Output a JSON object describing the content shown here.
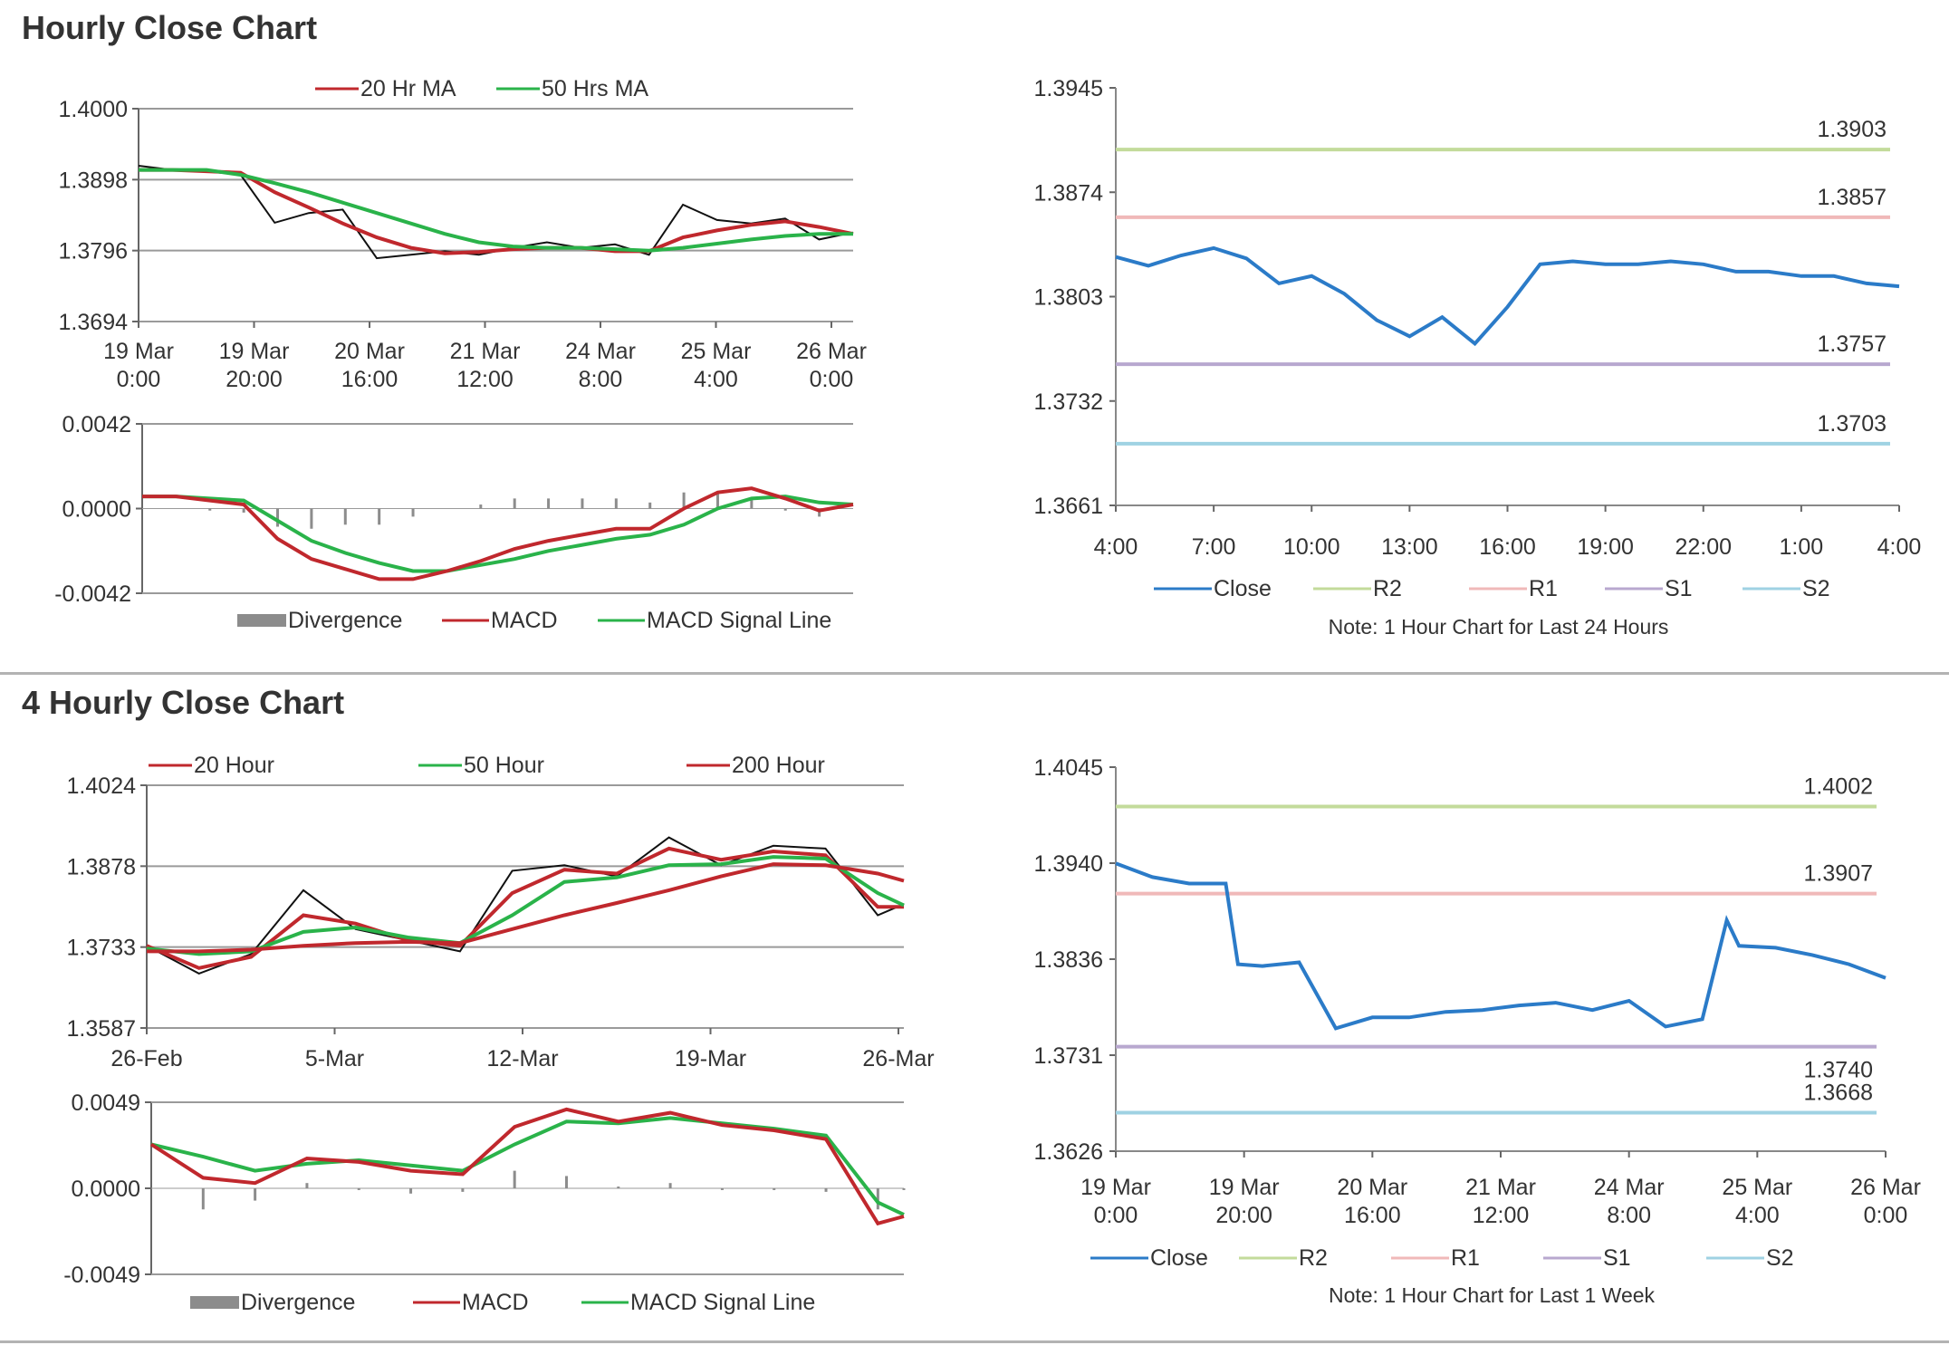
{
  "sections": {
    "hourly_title": "Hourly Close Chart",
    "four_hourly_title": "4 Hourly Close Chart"
  },
  "colors": {
    "ma_red": "#c0282d",
    "ma_green": "#2ab34a",
    "ma_blue": "#2b78c2",
    "close_blue": "#2b7bc8",
    "r2": "#c3db9b",
    "r1": "#f0b9b9",
    "s1": "#b8a8cf",
    "s2": "#9fd2e3",
    "divergence": "#8c8c8c"
  },
  "chart_data": [
    {
      "id": "hourly_price",
      "type": "line",
      "legend": [
        "20 Hr MA",
        "50 Hrs MA"
      ],
      "x_tick_labels": [
        [
          "19 Mar",
          "0:00"
        ],
        [
          "19 Mar",
          "20:00"
        ],
        [
          "20 Mar",
          "16:00"
        ],
        [
          "21 Mar",
          "12:00"
        ],
        [
          "24 Mar",
          "8:00"
        ],
        [
          "25 Mar",
          "4:00"
        ],
        [
          "26 Mar",
          "0:00"
        ]
      ],
      "y_tick_labels": [
        "1.4000",
        "1.3898",
        "1.3796",
        "1.3694"
      ],
      "ylim": [
        1.3694,
        1.4
      ],
      "x": [
        0,
        6,
        12,
        18,
        24,
        30,
        36,
        42,
        48,
        54,
        60,
        66,
        72,
        78,
        84,
        90,
        96,
        102,
        108,
        114,
        120,
        126
      ],
      "series": [
        {
          "name": "price",
          "values": [
            1.3918,
            1.3912,
            1.391,
            1.3905,
            1.3836,
            1.385,
            1.3855,
            1.3785,
            1.379,
            1.3795,
            1.379,
            1.38,
            1.3808,
            1.38,
            1.3805,
            1.379,
            1.3862,
            1.384,
            1.3835,
            1.3842,
            1.3812,
            1.3822
          ]
        },
        {
          "name": "20 Hr MA",
          "values": [
            1.3912,
            1.3912,
            1.391,
            1.3908,
            1.388,
            1.3858,
            1.3835,
            1.3815,
            1.38,
            1.3792,
            1.3794,
            1.3798,
            1.38,
            1.38,
            1.3795,
            1.3795,
            1.3815,
            1.3825,
            1.3833,
            1.3838,
            1.383,
            1.382
          ]
        },
        {
          "name": "50 Hrs MA",
          "values": [
            1.3912,
            1.3912,
            1.3912,
            1.3905,
            1.3893,
            1.388,
            1.3865,
            1.385,
            1.3835,
            1.382,
            1.3808,
            1.3802,
            1.38,
            1.38,
            1.3798,
            1.3796,
            1.38,
            1.3806,
            1.3812,
            1.3817,
            1.382,
            1.382
          ]
        }
      ]
    },
    {
      "id": "hourly_macd",
      "type": "line",
      "legend": [
        "Divergence",
        "MACD",
        "MACD Signal Line"
      ],
      "y_tick_labels": [
        "0.0042",
        "0.0000",
        "-0.0042"
      ],
      "ylim": [
        -0.0042,
        0.0042
      ],
      "x": [
        0,
        6,
        12,
        18,
        24,
        30,
        36,
        42,
        48,
        54,
        60,
        66,
        72,
        78,
        84,
        90,
        96,
        102,
        108,
        114,
        120,
        126
      ],
      "series": [
        {
          "name": "MACD",
          "values": [
            0.0006,
            0.0006,
            0.0004,
            0.0002,
            -0.0015,
            -0.0025,
            -0.003,
            -0.0035,
            -0.0035,
            -0.0031,
            -0.0026,
            -0.002,
            -0.0016,
            -0.0013,
            -0.001,
            -0.001,
            0.0,
            0.0008,
            0.001,
            0.0005,
            -0.0001,
            0.0002
          ]
        },
        {
          "name": "MACD Signal Line",
          "values": [
            0.0006,
            0.0006,
            0.0005,
            0.0004,
            -0.0006,
            -0.0016,
            -0.0022,
            -0.0027,
            -0.0031,
            -0.0031,
            -0.0028,
            -0.0025,
            -0.0021,
            -0.0018,
            -0.0015,
            -0.0013,
            -0.0008,
            0.0,
            0.0005,
            0.0006,
            0.0003,
            0.0002
          ]
        },
        {
          "name": "Divergence",
          "values": [
            0.0,
            0.0,
            -0.0001,
            -0.0002,
            -0.0009,
            -0.001,
            -0.0008,
            -0.0008,
            -0.0004,
            0.0,
            0.0002,
            0.0005,
            0.0005,
            0.0005,
            0.0005,
            0.0003,
            0.0008,
            0.0008,
            0.0005,
            -0.0001,
            -0.0004,
            0.0
          ]
        }
      ]
    },
    {
      "id": "hourly_levels",
      "type": "line",
      "legend": [
        "Close",
        "R2",
        "R1",
        "S1",
        "S2"
      ],
      "note": "Note: 1 Hour Chart for Last 24 Hours",
      "x_tick_labels": [
        "4:00",
        "7:00",
        "10:00",
        "13:00",
        "16:00",
        "19:00",
        "22:00",
        "1:00",
        "4:00"
      ],
      "y_tick_labels": [
        "1.3945",
        "1.3874",
        "1.3803",
        "1.3732",
        "1.3661"
      ],
      "ylim": [
        1.3661,
        1.3945
      ],
      "x": [
        0,
        1,
        2,
        3,
        4,
        5,
        6,
        7,
        8,
        9,
        10,
        11,
        12,
        13,
        14,
        15,
        16,
        17,
        18,
        19,
        20,
        21,
        22,
        23,
        24
      ],
      "series": [
        {
          "name": "Close",
          "values": [
            1.383,
            1.3824,
            1.3831,
            1.3836,
            1.3829,
            1.3812,
            1.3817,
            1.3805,
            1.3787,
            1.3776,
            1.3789,
            1.3771,
            1.3796,
            1.3825,
            1.3827,
            1.3825,
            1.3825,
            1.3827,
            1.3825,
            1.382,
            1.382,
            1.3817,
            1.3817,
            1.3812,
            1.381
          ]
        }
      ],
      "levels": {
        "R2": 1.3903,
        "R1": 1.3857,
        "S1": 1.3757,
        "S2": 1.3703
      },
      "level_labels": {
        "R2": "1.3903",
        "R1": "1.3857",
        "S1": "1.3757",
        "S2": "1.3703"
      }
    },
    {
      "id": "four_hourly_price",
      "type": "line",
      "legend": [
        "20 Hour",
        "50 Hour",
        "200 Hour"
      ],
      "x_tick_labels": [
        "26-Feb",
        "5-Mar",
        "12-Mar",
        "19-Mar",
        "26-Mar"
      ],
      "y_tick_labels": [
        "1.4024",
        "1.3878",
        "1.3733",
        "1.3587"
      ],
      "ylim": [
        1.3587,
        1.4024
      ],
      "x": [
        0,
        2,
        4,
        6,
        8,
        10,
        12,
        14,
        16,
        18,
        20,
        22,
        24,
        26,
        28,
        29
      ],
      "series": [
        {
          "name": "price",
          "values": [
            1.3735,
            1.3685,
            1.372,
            1.3835,
            1.3765,
            1.3745,
            1.3725,
            1.387,
            1.388,
            1.386,
            1.393,
            1.388,
            1.3915,
            1.391,
            1.379,
            1.381
          ]
        },
        {
          "name": "20 Hour",
          "values": [
            1.3735,
            1.3695,
            1.3715,
            1.379,
            1.3775,
            1.3745,
            1.3735,
            1.383,
            1.3872,
            1.3865,
            1.391,
            1.389,
            1.3905,
            1.3898,
            1.3805,
            1.3805
          ]
        },
        {
          "name": "50 Hour",
          "values": [
            1.373,
            1.372,
            1.3725,
            1.376,
            1.3768,
            1.375,
            1.374,
            1.379,
            1.385,
            1.3858,
            1.388,
            1.3882,
            1.3895,
            1.3892,
            1.383,
            1.3808
          ]
        },
        {
          "name": "200 Hour",
          "values": [
            1.3725,
            1.3725,
            1.3728,
            1.3735,
            1.374,
            1.3742,
            1.374,
            1.3765,
            1.379,
            1.3812,
            1.3835,
            1.386,
            1.3882,
            1.388,
            1.3865,
            1.3852
          ]
        }
      ]
    },
    {
      "id": "four_hourly_macd",
      "type": "line",
      "legend": [
        "Divergence",
        "MACD",
        "MACD Signal Line"
      ],
      "y_tick_labels": [
        "0.0049",
        "0.0000",
        "-0.0049"
      ],
      "ylim": [
        -0.0049,
        0.0049
      ],
      "x": [
        0,
        2,
        4,
        6,
        8,
        10,
        12,
        14,
        16,
        18,
        20,
        22,
        24,
        26,
        28,
        29
      ],
      "series": [
        {
          "name": "MACD",
          "values": [
            0.0025,
            0.0006,
            0.0003,
            0.0017,
            0.0015,
            0.001,
            0.0008,
            0.0035,
            0.0045,
            0.0038,
            0.0043,
            0.0036,
            0.0033,
            0.0028,
            -0.002,
            -0.0016
          ]
        },
        {
          "name": "MACD Signal Line",
          "values": [
            0.0025,
            0.0018,
            0.001,
            0.0014,
            0.0016,
            0.0013,
            0.001,
            0.0025,
            0.0038,
            0.0037,
            0.004,
            0.0037,
            0.0034,
            0.003,
            -0.0008,
            -0.0015
          ]
        },
        {
          "name": "Divergence",
          "values": [
            0.0,
            -0.0012,
            -0.0007,
            0.0003,
            -0.0001,
            -0.0003,
            -0.0002,
            0.001,
            0.0007,
            0.0001,
            0.0003,
            -0.0001,
            -0.0001,
            -0.0002,
            -0.0012,
            -0.0001
          ]
        }
      ]
    },
    {
      "id": "four_hourly_levels",
      "type": "line",
      "legend": [
        "Close",
        "R2",
        "R1",
        "S1",
        "S2"
      ],
      "note": "Note: 1 Hour Chart for Last 1 Week",
      "x_tick_labels": [
        [
          "19 Mar",
          "0:00"
        ],
        [
          "19 Mar",
          "20:00"
        ],
        [
          "20 Mar",
          "16:00"
        ],
        [
          "21 Mar",
          "12:00"
        ],
        [
          "24 Mar",
          "8:00"
        ],
        [
          "25 Mar",
          "4:00"
        ],
        [
          "26 Mar",
          "0:00"
        ]
      ],
      "y_tick_labels": [
        "1.4045",
        "1.3940",
        "1.3836",
        "1.3731",
        "1.3626"
      ],
      "ylim": [
        1.3626,
        1.4045
      ],
      "x": [
        0,
        6,
        12,
        18,
        20,
        24,
        30,
        36,
        42,
        48,
        54,
        60,
        66,
        72,
        78,
        84,
        90,
        96,
        100,
        102,
        108,
        114,
        120,
        126
      ],
      "series": [
        {
          "name": "Close",
          "values": [
            1.394,
            1.3925,
            1.3918,
            1.3918,
            1.383,
            1.3828,
            1.3832,
            1.376,
            1.3772,
            1.3772,
            1.3778,
            1.378,
            1.3785,
            1.3788,
            1.378,
            1.379,
            1.3762,
            1.377,
            1.3878,
            1.385,
            1.3848,
            1.384,
            1.383,
            1.3815
          ]
        }
      ],
      "levels": {
        "R2": 1.4002,
        "R1": 1.3907,
        "S1": 1.374,
        "S2": 1.3668
      },
      "level_labels": {
        "R2": "1.4002",
        "R1": "1.3907",
        "S1": "1.3740",
        "S2": "1.3668"
      }
    }
  ]
}
